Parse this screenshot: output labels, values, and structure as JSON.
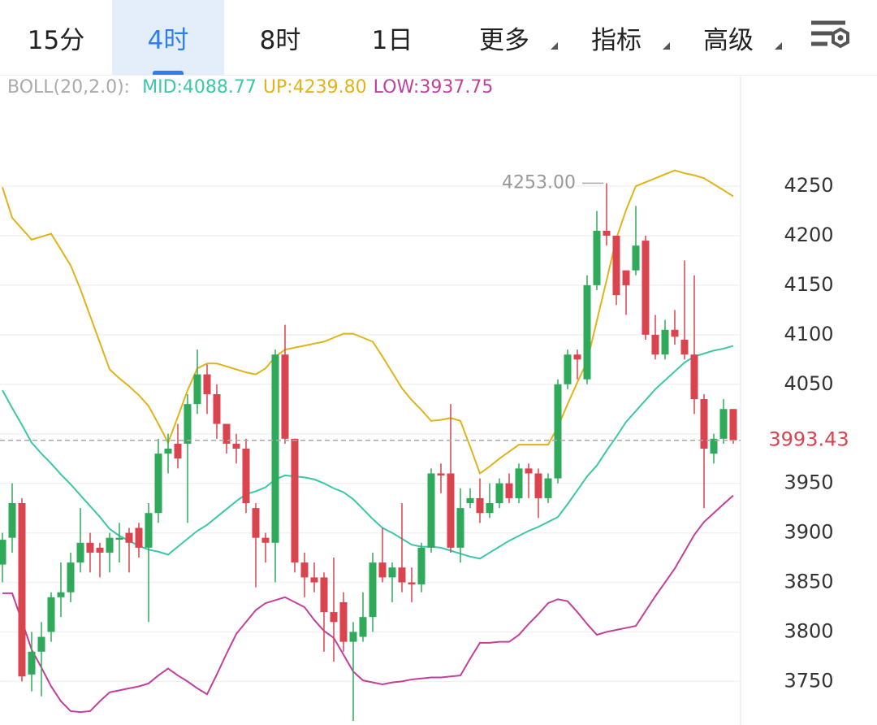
{
  "tabs": [
    "15分",
    "4时",
    "8时",
    "1日",
    "更多",
    "指标",
    "高级"
  ],
  "active_tab": 1,
  "dropdown_tabs": [
    4,
    5,
    6
  ],
  "indicator_label": {
    "prefix": "BOLL(20,2.0):",
    "items": [
      "MID:4088.77",
      "UP:4239.80",
      "LOW:3937.75"
    ]
  },
  "chart_data": {
    "type": "candlestick",
    "categories": [
      null,
      null,
      null,
      null,
      null,
      null,
      null,
      null,
      null,
      null,
      null,
      null,
      null,
      null,
      null,
      null,
      null,
      null,
      null,
      null,
      null,
      null,
      null,
      null,
      null,
      null,
      null,
      null,
      null,
      null,
      null,
      null,
      null,
      null,
      null,
      null,
      null,
      null,
      null,
      null,
      null,
      null,
      null,
      null,
      null,
      null,
      null,
      null,
      null,
      null,
      null,
      null,
      null,
      null,
      null,
      null,
      null,
      null,
      null,
      null,
      null,
      null,
      null,
      null,
      null,
      null,
      null,
      null,
      null,
      null,
      null,
      null,
      null,
      null,
      null,
      null
    ],
    "ohlc": {
      "open": [
        3868,
        3895,
        3930,
        3757,
        3780,
        3800,
        3835,
        3840,
        3870,
        3890,
        3885,
        3880,
        3893,
        3900,
        3905,
        3885,
        3920,
        3980,
        3990,
        3990,
        4030,
        4060,
        4040,
        4010,
        3990,
        3985,
        3925,
        3895,
        3890,
        4080,
        3995,
        3870,
        3855,
        3855,
        3820,
        3830,
        3790,
        3795,
        3815,
        3870,
        3855,
        3865,
        3850,
        3848,
        3885,
        3960,
        3960,
        3885,
        3930,
        3935,
        3920,
        3930,
        3950,
        3935,
        3965,
        3960,
        3935,
        3955,
        4050,
        4080,
        4055,
        4150,
        4205,
        4200,
        4165,
        4165,
        4195,
        4100,
        4080,
        4105,
        4095,
        4080,
        4035,
        3980,
        3995,
        4025
      ],
      "high": [
        3900,
        3950,
        3935,
        3800,
        3810,
        3840,
        3870,
        3880,
        3925,
        3900,
        3890,
        3900,
        3910,
        3905,
        3910,
        3930,
        3995,
        4000,
        4010,
        4040,
        4085,
        4070,
        4050,
        4010,
        4000,
        3995,
        3930,
        3900,
        4085,
        4110,
        3995,
        3880,
        3870,
        3860,
        3875,
        3840,
        3810,
        3840,
        3880,
        3905,
        3870,
        3930,
        3865,
        3890,
        3965,
        3970,
        4030,
        3945,
        3945,
        3955,
        3950,
        3955,
        3960,
        3970,
        3970,
        3965,
        3960,
        4055,
        4085,
        4085,
        4160,
        4225,
        4253,
        4200,
        4165,
        4230,
        4200,
        4120,
        4115,
        4125,
        4175,
        4160,
        4040,
        4000,
        4035,
        4025
      ],
      "low": [
        3850,
        3880,
        3750,
        3740,
        3735,
        3790,
        3815,
        3830,
        3860,
        3860,
        3855,
        3860,
        3870,
        3860,
        3875,
        3810,
        3910,
        3960,
        3965,
        3910,
        4020,
        4020,
        3995,
        3980,
        3970,
        3920,
        3845,
        3870,
        3850,
        3990,
        3860,
        3835,
        3840,
        3780,
        3770,
        3780,
        3710,
        3790,
        3800,
        3850,
        3830,
        3840,
        3830,
        3840,
        3880,
        3940,
        3880,
        3870,
        3925,
        3910,
        3915,
        3925,
        3930,
        3930,
        3935,
        3915,
        3930,
        3950,
        4045,
        4055,
        4050,
        4145,
        4190,
        4130,
        4120,
        4160,
        4095,
        4075,
        4075,
        4090,
        4075,
        4020,
        3925,
        3970,
        3990,
        3990
      ],
      "close": [
        3893,
        3930,
        3755,
        3780,
        3795,
        3835,
        3840,
        3870,
        3890,
        3880,
        3880,
        3895,
        3895,
        3890,
        3885,
        3920,
        3980,
        3985,
        3975,
        4030,
        4060,
        4040,
        4010,
        3990,
        3985,
        3930,
        3895,
        3890,
        4080,
        3995,
        3870,
        3855,
        3850,
        3820,
        3810,
        3790,
        3800,
        3815,
        3870,
        3855,
        3865,
        3850,
        3848,
        3885,
        3960,
        3958,
        3885,
        3925,
        3935,
        3920,
        3930,
        3950,
        3935,
        3965,
        3960,
        3935,
        3955,
        4050,
        4080,
        4075,
        4150,
        4205,
        4200,
        4140,
        4150,
        4190,
        4100,
        4080,
        4105,
        4098,
        4080,
        4035,
        3985,
        3995,
        4025,
        3993.43
      ]
    },
    "up_color": "#2eaa5a",
    "down_color": "#d9444f",
    "series": [
      {
        "name": "MID",
        "color": "#3cc7a8",
        "values": [
          4044,
          4026,
          4009,
          3991,
          3980,
          3970,
          3959,
          3949,
          3938,
          3927,
          3916,
          3904,
          3897,
          3892,
          3887,
          3883,
          3881,
          3878,
          3886,
          3894,
          3902,
          3908,
          3916,
          3924,
          3932,
          3939,
          3942,
          3946,
          3954,
          3958,
          3957,
          3956,
          3954,
          3950,
          3945,
          3941,
          3934,
          3924,
          3914,
          3905,
          3900,
          3894,
          3888,
          3886,
          3886,
          3885,
          3882,
          3879,
          3876,
          3874,
          3880,
          3886,
          3892,
          3897,
          3902,
          3906,
          3911,
          3916,
          3929,
          3943,
          3957,
          3968,
          3983,
          3997,
          4012,
          4023,
          4034,
          4045,
          4054,
          4063,
          4072,
          4078,
          4081,
          4084,
          4086,
          4088.77
        ]
      },
      {
        "name": "UP",
        "color": "#e0b418",
        "values": [
          4249,
          4218,
          4207,
          4196,
          4199,
          4202,
          4186,
          4170,
          4146,
          4119,
          4092,
          4065,
          4056,
          4048,
          4039,
          4028,
          4010,
          3991,
          4017,
          4044,
          4066,
          4071,
          4071,
          4068,
          4065,
          4062,
          4060,
          4066,
          4078,
          4085,
          4087,
          4089,
          4091,
          4093,
          4097,
          4101,
          4101,
          4097,
          4093,
          4078,
          4062,
          4046,
          4034,
          4024,
          4013,
          4014,
          4016,
          4013,
          3987,
          3960,
          3967,
          3975,
          3982,
          3989,
          3989,
          3989,
          3989,
          4007,
          4030,
          4052,
          4073,
          4114,
          4155,
          4197,
          4226,
          4250,
          4254,
          4258,
          4262,
          4266,
          4263,
          4261,
          4258,
          4252,
          4246,
          4239.8
        ]
      },
      {
        "name": "LOW",
        "color": "#c2409b",
        "values": [
          3839,
          3839,
          3811,
          3782,
          3764,
          3745,
          3730,
          3720,
          3719,
          3720,
          3730,
          3739,
          3741,
          3743,
          3745,
          3748,
          3756,
          3763,
          3756,
          3750,
          3743,
          3737,
          3757,
          3778,
          3798,
          3810,
          3822,
          3829,
          3832,
          3835,
          3830,
          3825,
          3812,
          3801,
          3794,
          3777,
          3760,
          3751,
          3749,
          3747,
          3749,
          3750,
          3752,
          3753,
          3754,
          3754,
          3755,
          3756,
          3773,
          3789,
          3789,
          3790,
          3790,
          3797,
          3808,
          3818,
          3829,
          3833,
          3831,
          3820,
          3808,
          3797,
          3800,
          3802,
          3804,
          3806,
          3821,
          3836,
          3850,
          3864,
          3881,
          3898,
          3911,
          3920,
          3929,
          3937.75
        ]
      }
    ],
    "ylim": [
      3706,
      4360
    ],
    "yticks": [
      3750,
      3800,
      3850,
      3900,
      3950,
      4000,
      4050,
      4100,
      4150,
      4200,
      4250
    ],
    "ytick_hidden": [
      5
    ],
    "grid": true,
    "last_price": 3993.43,
    "high_annotation": {
      "value": 4253,
      "label": "4253.00",
      "index": 62
    }
  }
}
